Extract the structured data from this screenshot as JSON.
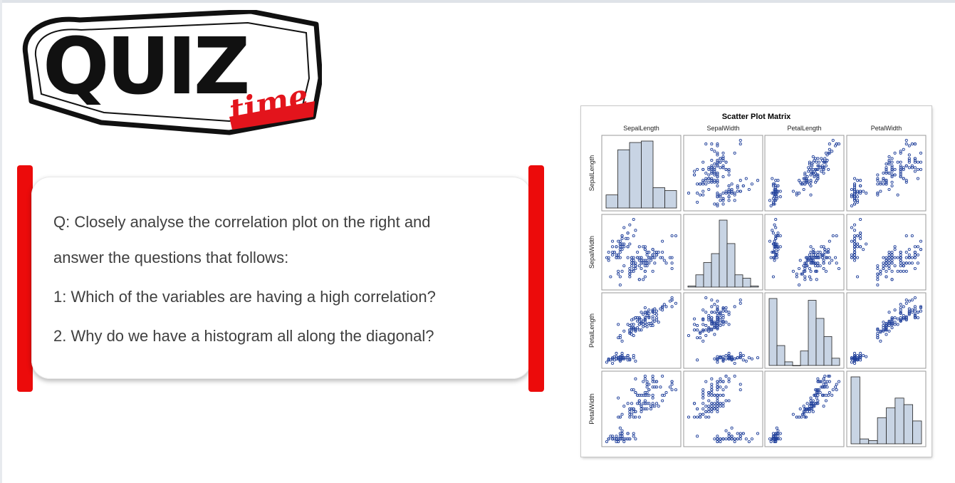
{
  "logo": {
    "word": "QUIZ",
    "sub": "time"
  },
  "question": {
    "lines": [
      "Q: Closely analyse the correlation plot on the right and",
      "answer the questions that follows:",
      "1: Which of the variables are having a high correlation?",
      "2. Why do we have a histogram all along the diagonal?"
    ]
  },
  "colors": {
    "accent_red": "#ec0b0b",
    "point_color": "#1f3f9a",
    "hist_fill": "#c8d4e4",
    "text": "#404040"
  },
  "chart_data": {
    "type": "scatter",
    "title": "Scatter Plot Matrix",
    "variables": [
      "SepalLength",
      "SepalWidth",
      "PetalLength",
      "PetalWidth"
    ],
    "ranges": {
      "SepalLength": [
        4.3,
        7.9
      ],
      "SepalWidth": [
        2.0,
        4.4
      ],
      "PetalLength": [
        1.0,
        6.9
      ],
      "PetalWidth": [
        0.1,
        2.5
      ]
    },
    "histograms": {
      "SepalLength": [
        9,
        40,
        45,
        46,
        14,
        12
      ],
      "SepalWidth": [
        1,
        11,
        22,
        30,
        60,
        39,
        11,
        8,
        1
      ],
      "PetalLength": [
        37,
        11,
        2,
        0,
        8,
        36,
        26,
        16,
        4
      ],
      "PetalWidth": [
        41,
        3,
        2,
        16,
        22,
        28,
        24,
        14
      ]
    },
    "points": [
      [
        5.1,
        3.5,
        1.4,
        0.2
      ],
      [
        4.9,
        3.0,
        1.4,
        0.2
      ],
      [
        4.7,
        3.2,
        1.3,
        0.2
      ],
      [
        4.6,
        3.1,
        1.5,
        0.2
      ],
      [
        5.0,
        3.6,
        1.4,
        0.2
      ],
      [
        5.4,
        3.9,
        1.7,
        0.4
      ],
      [
        4.6,
        3.4,
        1.4,
        0.3
      ],
      [
        5.0,
        3.4,
        1.5,
        0.2
      ],
      [
        4.4,
        2.9,
        1.4,
        0.2
      ],
      [
        4.9,
        3.1,
        1.5,
        0.1
      ],
      [
        5.4,
        3.7,
        1.5,
        0.2
      ],
      [
        4.8,
        3.4,
        1.6,
        0.2
      ],
      [
        4.8,
        3.0,
        1.4,
        0.1
      ],
      [
        4.3,
        3.0,
        1.1,
        0.1
      ],
      [
        5.8,
        4.0,
        1.2,
        0.2
      ],
      [
        5.7,
        4.4,
        1.5,
        0.4
      ],
      [
        5.4,
        3.9,
        1.3,
        0.4
      ],
      [
        5.1,
        3.5,
        1.4,
        0.3
      ],
      [
        5.7,
        3.8,
        1.7,
        0.3
      ],
      [
        5.1,
        3.8,
        1.5,
        0.3
      ],
      [
        5.4,
        3.4,
        1.7,
        0.2
      ],
      [
        5.1,
        3.7,
        1.5,
        0.4
      ],
      [
        4.6,
        3.6,
        1.0,
        0.2
      ],
      [
        5.1,
        3.3,
        1.7,
        0.5
      ],
      [
        4.8,
        3.4,
        1.9,
        0.2
      ],
      [
        5.0,
        3.0,
        1.6,
        0.2
      ],
      [
        5.0,
        3.4,
        1.6,
        0.4
      ],
      [
        5.2,
        3.5,
        1.5,
        0.2
      ],
      [
        5.2,
        3.4,
        1.4,
        0.2
      ],
      [
        4.7,
        3.2,
        1.6,
        0.2
      ],
      [
        4.8,
        3.1,
        1.6,
        0.2
      ],
      [
        5.4,
        3.4,
        1.5,
        0.4
      ],
      [
        5.2,
        4.1,
        1.5,
        0.1
      ],
      [
        5.5,
        4.2,
        1.4,
        0.2
      ],
      [
        4.9,
        3.1,
        1.5,
        0.2
      ],
      [
        5.0,
        3.2,
        1.2,
        0.2
      ],
      [
        5.5,
        3.5,
        1.3,
        0.2
      ],
      [
        4.9,
        3.6,
        1.4,
        0.1
      ],
      [
        4.4,
        3.0,
        1.3,
        0.2
      ],
      [
        5.1,
        3.4,
        1.5,
        0.2
      ],
      [
        5.0,
        3.5,
        1.3,
        0.3
      ],
      [
        4.5,
        2.3,
        1.3,
        0.3
      ],
      [
        4.4,
        3.2,
        1.3,
        0.2
      ],
      [
        5.0,
        3.5,
        1.6,
        0.6
      ],
      [
        5.1,
        3.8,
        1.9,
        0.4
      ],
      [
        4.8,
        3.0,
        1.4,
        0.3
      ],
      [
        5.1,
        3.8,
        1.6,
        0.2
      ],
      [
        4.6,
        3.2,
        1.4,
        0.2
      ],
      [
        5.3,
        3.7,
        1.5,
        0.2
      ],
      [
        5.0,
        3.3,
        1.4,
        0.2
      ],
      [
        7.0,
        3.2,
        4.7,
        1.4
      ],
      [
        6.4,
        3.2,
        4.5,
        1.5
      ],
      [
        6.9,
        3.1,
        4.9,
        1.5
      ],
      [
        5.5,
        2.3,
        4.0,
        1.3
      ],
      [
        6.5,
        2.8,
        4.6,
        1.5
      ],
      [
        5.7,
        2.8,
        4.5,
        1.3
      ],
      [
        6.3,
        3.3,
        4.7,
        1.6
      ],
      [
        4.9,
        2.4,
        3.3,
        1.0
      ],
      [
        6.6,
        2.9,
        4.6,
        1.3
      ],
      [
        5.2,
        2.7,
        3.9,
        1.4
      ],
      [
        5.0,
        2.0,
        3.5,
        1.0
      ],
      [
        5.9,
        3.0,
        4.2,
        1.5
      ],
      [
        6.0,
        2.2,
        4.0,
        1.0
      ],
      [
        6.1,
        2.9,
        4.7,
        1.4
      ],
      [
        5.6,
        2.9,
        3.6,
        1.3
      ],
      [
        6.7,
        3.1,
        4.4,
        1.4
      ],
      [
        5.6,
        3.0,
        4.5,
        1.5
      ],
      [
        5.8,
        2.7,
        4.1,
        1.0
      ],
      [
        6.2,
        2.2,
        4.5,
        1.5
      ],
      [
        5.6,
        2.5,
        3.9,
        1.1
      ],
      [
        5.9,
        3.2,
        4.8,
        1.8
      ],
      [
        6.1,
        2.8,
        4.0,
        1.3
      ],
      [
        6.3,
        2.5,
        4.9,
        1.5
      ],
      [
        6.1,
        2.8,
        4.7,
        1.2
      ],
      [
        6.4,
        2.9,
        4.3,
        1.3
      ],
      [
        6.6,
        3.0,
        4.4,
        1.4
      ],
      [
        6.8,
        2.8,
        4.8,
        1.4
      ],
      [
        6.7,
        3.0,
        5.0,
        1.7
      ],
      [
        6.0,
        2.9,
        4.5,
        1.5
      ],
      [
        5.7,
        2.6,
        3.5,
        1.0
      ],
      [
        5.5,
        2.4,
        3.8,
        1.1
      ],
      [
        5.5,
        2.4,
        3.7,
        1.0
      ],
      [
        5.8,
        2.7,
        3.9,
        1.2
      ],
      [
        6.0,
        2.7,
        5.1,
        1.6
      ],
      [
        5.4,
        3.0,
        4.5,
        1.5
      ],
      [
        6.0,
        3.4,
        4.5,
        1.6
      ],
      [
        6.7,
        3.1,
        4.7,
        1.5
      ],
      [
        6.3,
        2.3,
        4.4,
        1.3
      ],
      [
        5.6,
        3.0,
        4.1,
        1.3
      ],
      [
        5.5,
        2.5,
        4.0,
        1.3
      ],
      [
        5.5,
        2.6,
        4.4,
        1.2
      ],
      [
        6.1,
        3.0,
        4.6,
        1.4
      ],
      [
        5.8,
        2.6,
        4.0,
        1.2
      ],
      [
        5.0,
        2.3,
        3.3,
        1.0
      ],
      [
        5.6,
        2.7,
        4.2,
        1.3
      ],
      [
        5.7,
        3.0,
        4.2,
        1.2
      ],
      [
        5.7,
        2.9,
        4.2,
        1.3
      ],
      [
        6.2,
        2.9,
        4.3,
        1.3
      ],
      [
        5.1,
        2.5,
        3.0,
        1.1
      ],
      [
        5.7,
        2.8,
        4.1,
        1.3
      ],
      [
        6.3,
        3.3,
        6.0,
        2.5
      ],
      [
        5.8,
        2.7,
        5.1,
        1.9
      ],
      [
        7.1,
        3.0,
        5.9,
        2.1
      ],
      [
        6.3,
        2.9,
        5.6,
        1.8
      ],
      [
        6.5,
        3.0,
        5.8,
        2.2
      ],
      [
        7.6,
        3.0,
        6.6,
        2.1
      ],
      [
        4.9,
        2.5,
        4.5,
        1.7
      ],
      [
        7.3,
        2.9,
        6.3,
        1.8
      ],
      [
        6.7,
        2.5,
        5.8,
        1.8
      ],
      [
        7.2,
        3.6,
        6.1,
        2.5
      ],
      [
        6.5,
        3.2,
        5.1,
        2.0
      ],
      [
        6.4,
        2.7,
        5.3,
        1.9
      ],
      [
        6.8,
        3.0,
        5.5,
        2.1
      ],
      [
        5.7,
        2.5,
        5.0,
        2.0
      ],
      [
        5.8,
        2.8,
        5.1,
        2.4
      ],
      [
        6.4,
        3.2,
        5.3,
        2.3
      ],
      [
        6.5,
        3.0,
        5.5,
        1.8
      ],
      [
        7.7,
        3.8,
        6.7,
        2.2
      ],
      [
        7.7,
        2.6,
        6.9,
        2.3
      ],
      [
        6.0,
        2.2,
        5.0,
        1.5
      ],
      [
        6.9,
        3.2,
        5.7,
        2.3
      ],
      [
        5.6,
        2.8,
        4.9,
        2.0
      ],
      [
        7.7,
        2.8,
        6.7,
        2.0
      ],
      [
        6.3,
        2.7,
        4.9,
        1.8
      ],
      [
        6.7,
        3.3,
        5.7,
        2.1
      ],
      [
        7.2,
        3.2,
        6.0,
        1.8
      ],
      [
        6.2,
        2.8,
        4.8,
        1.8
      ],
      [
        6.1,
        3.0,
        4.9,
        1.8
      ],
      [
        6.4,
        2.8,
        5.6,
        2.1
      ],
      [
        7.2,
        3.0,
        5.8,
        1.6
      ],
      [
        7.4,
        2.8,
        6.1,
        1.9
      ],
      [
        7.9,
        3.8,
        6.4,
        2.0
      ],
      [
        6.4,
        2.8,
        5.6,
        2.2
      ],
      [
        6.3,
        2.8,
        5.1,
        1.5
      ],
      [
        6.1,
        2.6,
        5.6,
        1.4
      ],
      [
        7.7,
        3.0,
        6.1,
        2.3
      ],
      [
        6.3,
        3.4,
        5.6,
        2.4
      ],
      [
        6.4,
        3.1,
        5.5,
        1.8
      ],
      [
        6.0,
        3.0,
        4.8,
        1.8
      ],
      [
        6.9,
        3.1,
        5.4,
        2.1
      ],
      [
        6.7,
        3.1,
        5.6,
        2.4
      ],
      [
        6.9,
        3.1,
        5.1,
        2.3
      ],
      [
        5.8,
        2.7,
        5.1,
        1.9
      ],
      [
        6.8,
        3.2,
        5.9,
        2.3
      ],
      [
        6.7,
        3.3,
        5.7,
        2.5
      ],
      [
        6.7,
        3.0,
        5.2,
        2.3
      ],
      [
        6.3,
        2.5,
        5.0,
        1.9
      ],
      [
        6.5,
        3.0,
        5.2,
        2.0
      ],
      [
        6.2,
        3.4,
        5.4,
        2.3
      ],
      [
        5.9,
        3.0,
        5.1,
        1.8
      ]
    ]
  }
}
